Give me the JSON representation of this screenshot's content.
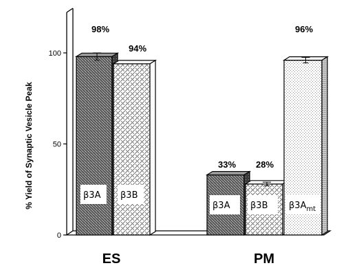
{
  "chart_data": {
    "type": "bar",
    "title": "",
    "ylabel": "% Yield of Synaptic Vesicle Peak",
    "xlabel": "",
    "ylim": [
      0,
      100
    ],
    "yticks": [
      "0",
      "50",
      "100"
    ],
    "ytick_values": [
      0,
      50,
      100
    ],
    "grid": false,
    "groups": [
      {
        "name": "ES",
        "bars": [
          {
            "label": "β3A",
            "value": 98,
            "value_label": "98%",
            "error": 2,
            "pattern": "dark-stipple"
          },
          {
            "label": "β3B",
            "value": 94,
            "value_label": "94%",
            "error": 0,
            "pattern": "diamond-hatch"
          }
        ]
      },
      {
        "name": "PM",
        "bars": [
          {
            "label": "β3A",
            "value": 33,
            "value_label": "33%",
            "error": 0,
            "pattern": "dark-stipple"
          },
          {
            "label": "β3B",
            "value": 28,
            "value_label": "28%",
            "error": 1,
            "pattern": "diamond-hatch"
          },
          {
            "label": "β3A",
            "label_sub": "mt",
            "value": 96,
            "value_label": "96%",
            "error": 1.5,
            "pattern": "light-stipple"
          }
        ]
      }
    ]
  }
}
